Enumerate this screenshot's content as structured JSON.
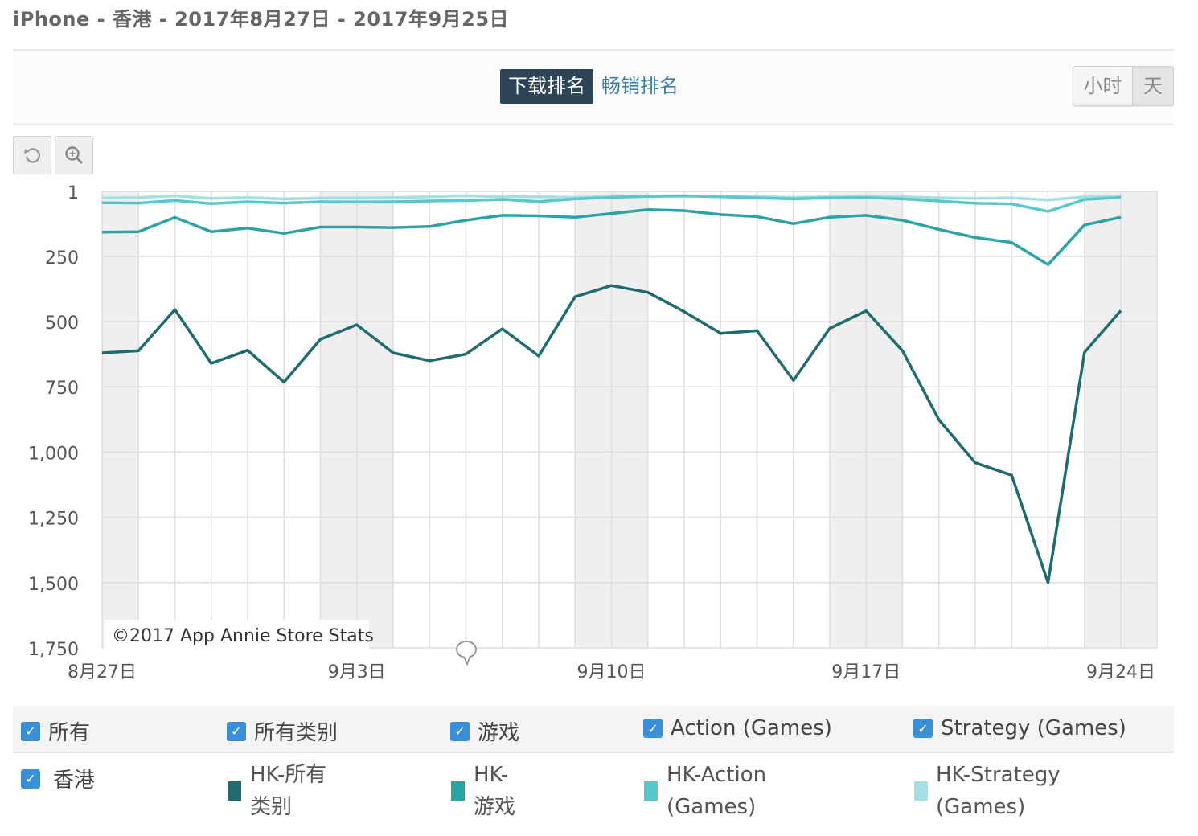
{
  "header": {
    "title": "iPhone - 香港 - 2017年8月27日 - 2017年9月25日"
  },
  "toolbar": {
    "tabs": [
      {
        "label": "下载排名",
        "active": true
      },
      {
        "label": "畅销排名",
        "active": false
      }
    ],
    "granularity": [
      {
        "label": "小时",
        "active": false
      },
      {
        "label": "天",
        "active": true
      }
    ]
  },
  "chart_tools": {
    "reset_icon": "reset-zoom-icon",
    "zoom_icon": "zoom-in-icon"
  },
  "watermark": "©2017 App Annie Store Stats",
  "chart_data": {
    "type": "line",
    "x": [
      "8月27日",
      "8月28日",
      "8月29日",
      "8月30日",
      "8月31日",
      "9月1日",
      "9月2日",
      "9月3日",
      "9月4日",
      "9月5日",
      "9月6日",
      "9月7日",
      "9月8日",
      "9月9日",
      "9月10日",
      "9月11日",
      "9月12日",
      "9月13日",
      "9月14日",
      "9月15日",
      "9月16日",
      "9月17日",
      "9月18日",
      "9月19日",
      "9月20日",
      "9月21日",
      "9月22日",
      "9月23日",
      "9月24日"
    ],
    "x_ticks": [
      "8月27日",
      "9月3日",
      "9月10日",
      "9月17日",
      "9月24日"
    ],
    "y_ticks": [
      "1",
      "250",
      "500",
      "750",
      "1,000",
      "1,250",
      "1,500",
      "1,750"
    ],
    "ylim": [
      1,
      1750
    ],
    "y_reversed": true,
    "weekend_shading": true,
    "grid": true,
    "series": [
      {
        "name": "HK-所有类别",
        "color": "#1f6b70",
        "values": [
          620,
          612,
          454,
          660,
          610,
          732,
          568,
          512,
          620,
          650,
          625,
          528,
          632,
          405,
          362,
          388,
          462,
          545,
          535,
          725,
          526,
          459,
          612,
          876,
          1041,
          1089,
          1500,
          618,
          458
        ]
      },
      {
        "name": "HK-游戏",
        "color": "#2aa3a5",
        "values": [
          157,
          156,
          101,
          156,
          142,
          162,
          138,
          138,
          140,
          136,
          112,
          93,
          95,
          100,
          86,
          71,
          75,
          90,
          98,
          125,
          100,
          93,
          112,
          147,
          178,
          197,
          282,
          130,
          100
        ]
      },
      {
        "name": "HK-Action (Games)",
        "color": "#58c8cc",
        "values": [
          45,
          46,
          36,
          48,
          41,
          46,
          41,
          42,
          41,
          38,
          36,
          32,
          40,
          30,
          24,
          20,
          19,
          22,
          26,
          30,
          26,
          25,
          30,
          38,
          47,
          49,
          78,
          32,
          24
        ]
      },
      {
        "name": "HK-Strategy (Games)",
        "color": "#a4dfe2",
        "values": [
          26,
          25,
          18,
          28,
          25,
          30,
          27,
          26,
          25,
          22,
          18,
          22,
          22,
          24,
          20,
          18,
          18,
          20,
          20,
          24,
          22,
          20,
          22,
          26,
          28,
          26,
          34,
          22,
          20
        ]
      }
    ]
  },
  "legend": {
    "groups": [
      "所有",
      "所有类别",
      "游戏",
      "Action (Games)",
      "Strategy (Games)"
    ],
    "country": "香港",
    "series_labels": [
      [
        "HK-所有",
        "类别"
      ],
      [
        "HK-",
        "游戏"
      ],
      [
        "HK-Action",
        "(Games)"
      ],
      [
        "HK-Strategy",
        "(Games)"
      ]
    ],
    "series_colors": [
      "#1f6b70",
      "#2aa3a5",
      "#58c8cc",
      "#a4dfe2"
    ]
  }
}
